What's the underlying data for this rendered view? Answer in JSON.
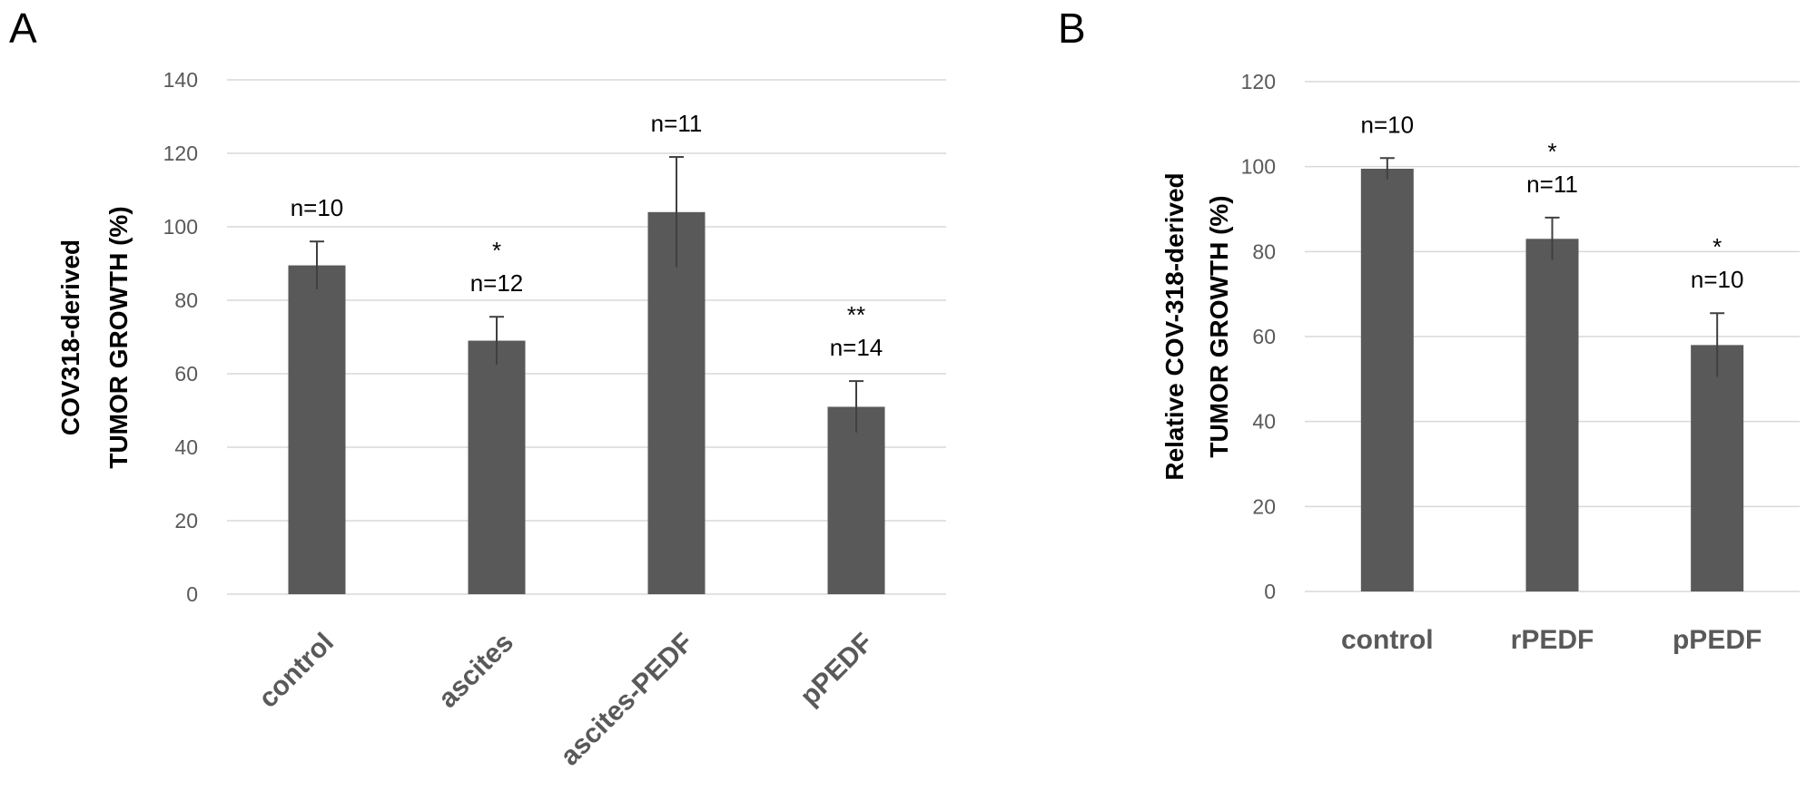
{
  "panel_labels": {
    "a": "A",
    "b": "B"
  },
  "colors": {
    "bar": "#595959",
    "grid": "#d9d9d9",
    "tick_text": "#595959",
    "error_bar": "#404040"
  },
  "chart_data": [
    {
      "type": "bar",
      "categories": [
        "control",
        "ascites",
        "ascites-PEDF",
        "pPEDF"
      ],
      "values": [
        89.5,
        69,
        104,
        51
      ],
      "errors": [
        6.5,
        6.5,
        15,
        7
      ],
      "annotations": [
        [
          "n=10"
        ],
        [
          "*",
          "n=12"
        ],
        [
          "n=11"
        ],
        [
          "**",
          "n=14"
        ]
      ],
      "ylabel": [
        "COV318-derived",
        "TUMOR GROWTH (%)"
      ],
      "ylim": [
        0,
        140
      ],
      "yticks": [
        0,
        20,
        40,
        60,
        80,
        100,
        120,
        140
      ],
      "grid": true,
      "xtick_rotation": "-45deg"
    },
    {
      "type": "bar",
      "categories": [
        "control",
        "rPEDF",
        "pPEDF"
      ],
      "values": [
        99.5,
        83,
        58
      ],
      "errors": [
        2.5,
        5,
        7.5
      ],
      "annotations": [
        [
          "n=10"
        ],
        [
          "*",
          "n=11"
        ],
        [
          "*",
          "n=10"
        ]
      ],
      "ylabel": [
        "Relative COV-318-derived",
        "TUMOR GROWTH (%)"
      ],
      "ylim": [
        0,
        120
      ],
      "yticks": [
        0,
        20,
        40,
        60,
        80,
        100,
        120
      ],
      "grid": true,
      "xtick_rotation": "none"
    }
  ]
}
